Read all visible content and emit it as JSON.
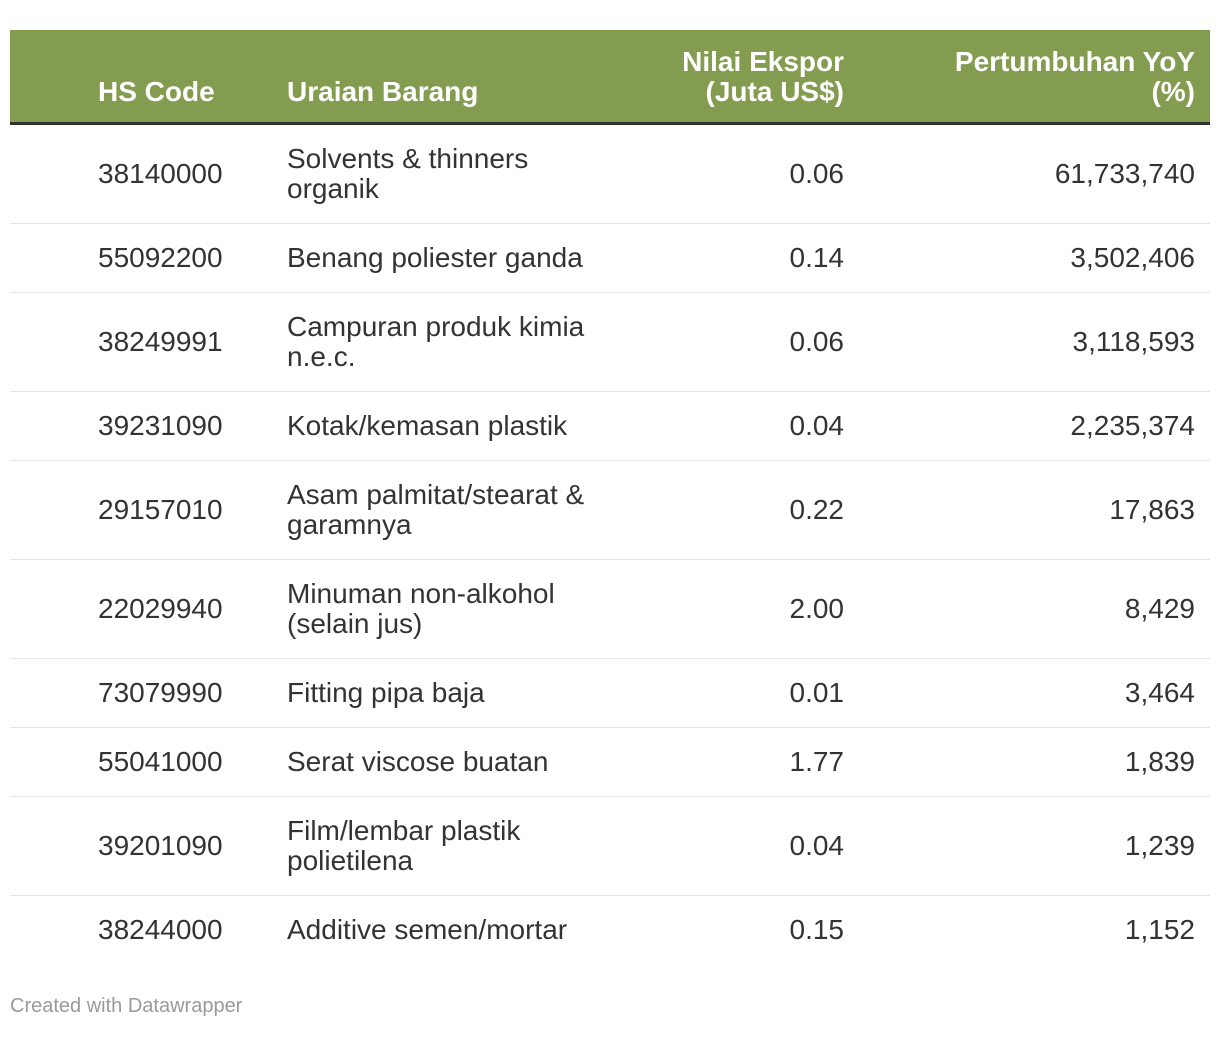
{
  "chart_data": {
    "type": "table",
    "columns": [
      "HS Code",
      "Uraian Barang",
      "Nilai Ekspor (Juta US$)",
      "Pertumbuhan YoY (%)"
    ],
    "rows": [
      [
        "38140000",
        "Solvents & thinners organik",
        0.06,
        61733740
      ],
      [
        "55092200",
        "Benang poliester ganda",
        0.14,
        3502406
      ],
      [
        "38249991",
        "Campuran produk kimia n.e.c.",
        0.06,
        3118593
      ],
      [
        "39231090",
        "Kotak/kemasan plastik",
        0.04,
        2235374
      ],
      [
        "29157010",
        "Asam palmitat/stearat & garamnya",
        0.22,
        17863
      ],
      [
        "22029940",
        "Minuman non-alkohol (selain jus)",
        2.0,
        8429
      ],
      [
        "73079990",
        "Fitting pipa baja",
        0.01,
        3464
      ],
      [
        "55041000",
        "Serat viscose buatan",
        1.77,
        1839
      ],
      [
        "39201090",
        "Film/lembar plastik polietilena",
        0.04,
        1239
      ],
      [
        "38244000",
        "Additive semen/mortar",
        0.15,
        1152
      ]
    ],
    "layout": {
      "header_position": "top",
      "grid": "horizontal-dividers",
      "numeric_columns_right_aligned": true
    }
  },
  "colors": {
    "header_background": "#839C50",
    "header_text": "#FFFFFF",
    "header_underline": "#333333",
    "row_divider": "#E6E6E6",
    "body_text": "#333333",
    "footer_text": "#9A9A9A"
  },
  "header": {
    "hs_code": "HS Code",
    "uraian": "Uraian Barang",
    "nilai": "Nilai Ekspor\n(Juta US$)",
    "yoy": "Pertumbuhan YoY\n(%)"
  },
  "rows": [
    {
      "hs_code": "38140000",
      "uraian": "Solvents & thinners\norganik",
      "nilai": "0.06",
      "yoy": "61,733,740"
    },
    {
      "hs_code": "55092200",
      "uraian": "Benang poliester ganda",
      "nilai": "0.14",
      "yoy": "3,502,406"
    },
    {
      "hs_code": "38249991",
      "uraian": "Campuran produk kimia\nn.e.c.",
      "nilai": "0.06",
      "yoy": "3,118,593"
    },
    {
      "hs_code": "39231090",
      "uraian": "Kotak/kemasan plastik",
      "nilai": "0.04",
      "yoy": "2,235,374"
    },
    {
      "hs_code": "29157010",
      "uraian": "Asam palmitat/stearat &\ngaramnya",
      "nilai": "0.22",
      "yoy": "17,863"
    },
    {
      "hs_code": "22029940",
      "uraian": "Minuman non-alkohol\n(selain jus)",
      "nilai": "2.00",
      "yoy": "8,429"
    },
    {
      "hs_code": "73079990",
      "uraian": "Fitting pipa baja",
      "nilai": "0.01",
      "yoy": "3,464"
    },
    {
      "hs_code": "55041000",
      "uraian": "Serat viscose buatan",
      "nilai": "1.77",
      "yoy": "1,839"
    },
    {
      "hs_code": "39201090",
      "uraian": "Film/lembar plastik\npolietilena",
      "nilai": "0.04",
      "yoy": "1,239"
    },
    {
      "hs_code": "38244000",
      "uraian": "Additive semen/mortar",
      "nilai": "0.15",
      "yoy": "1,152"
    }
  ],
  "footer": {
    "created_with": "Created with ",
    "brand": "Datawrapper"
  }
}
